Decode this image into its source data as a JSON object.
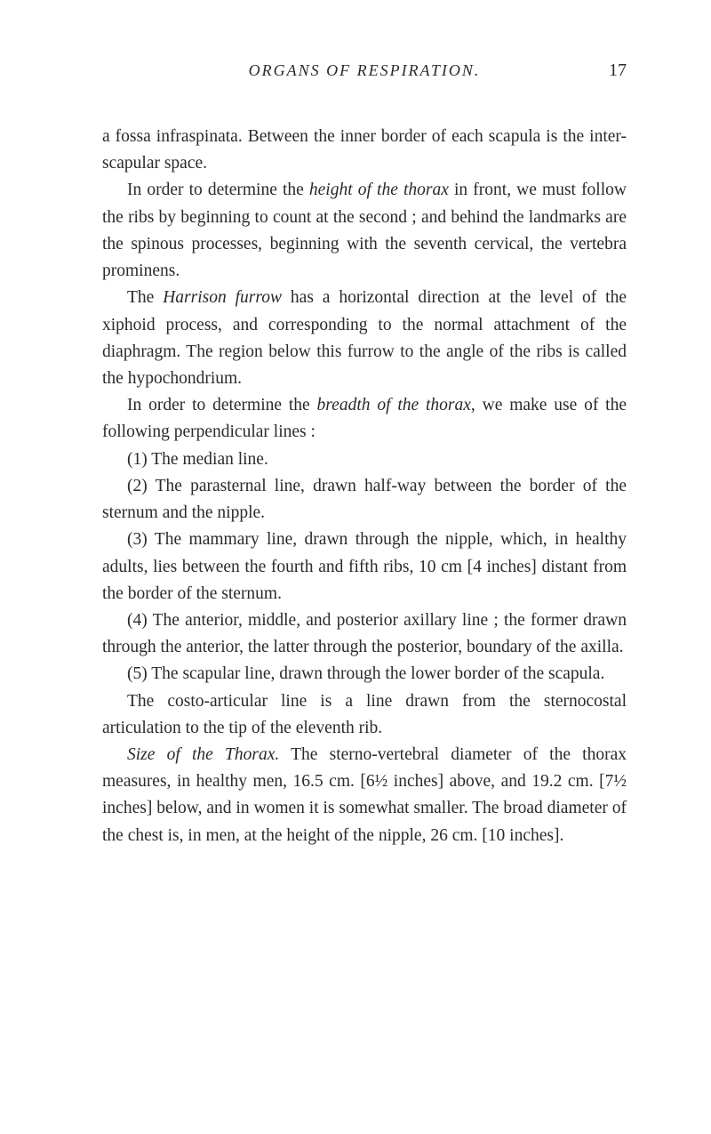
{
  "header": {
    "running_title": "ORGANS OF RESPIRATION.",
    "page_number": "17"
  },
  "paragraphs": {
    "p1a": "a fossa infraspinata.   Between the inner border of each scapula is the inter-scapular space.",
    "p2a": "In order to determine the ",
    "p2b": "height of the thorax",
    "p2c": " in front, we must follow the ribs by beginning to count at the second ; and behind the landmarks are the spinous pro­cesses, beginning with the seventh cervical, the vertebra prominens.",
    "p3a": "The ",
    "p3b": "Harrison furrow",
    "p3c": " has a horizontal direction at the level of the xiphoid process, and corresponding to the normal attachment of the diaphragm. The region be­low this furrow to the angle of the ribs is called the hypochondrium.",
    "p4a": "In order to determine the ",
    "p4b": "breadth of the thorax",
    "p4c": ", we make use of the following perpendicular lines :",
    "p5": "(1) The median line.",
    "p6": "(2) The parasternal line, drawn half-way between the border of the sternum and the nipple.",
    "p7": "(3) The mammary line, drawn through the nipple, which, in healthy adults, lies between the fourth and fifth ribs, 10 cm [4 inches] distant from the border of the sternum.",
    "p8": "(4) The anterior, middle, and posterior axillary line ; the former drawn through the anterior, the latter through the posterior, boundary of the axilla.",
    "p9": "(5) The scapular line, drawn through the lower border of the scapula.",
    "p10": "The costo-articular line is a line drawn from the sterno­costal articulation to the tip of the eleventh rib.",
    "p11a": "Size of the Thorax.",
    "p11b": "   The sterno-vertebral diameter of the thorax measures, in healthy men, 16.5 cm. [6½ inches] above, and 19.2 cm. [7½ inches] below, and in women it is somewhat smaller.  The broad diameter of the chest is, in men, at the height of the nipple, 26 cm. [10 inches]."
  }
}
